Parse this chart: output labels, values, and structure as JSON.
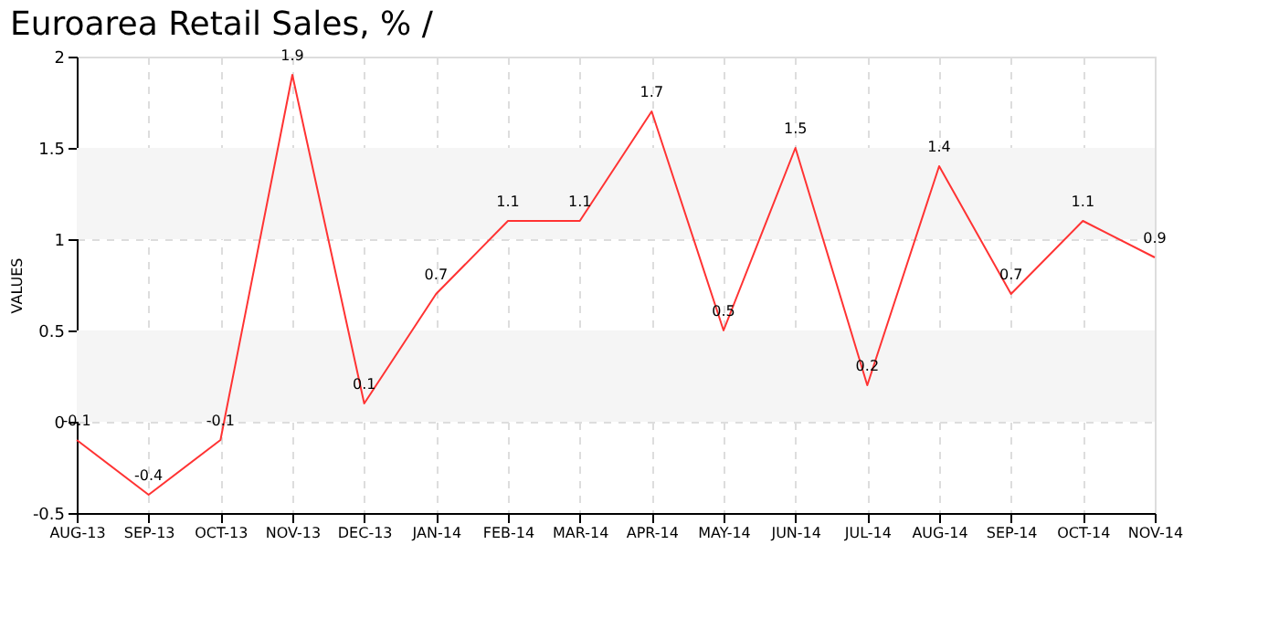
{
  "chart_data": {
    "type": "line",
    "title": "Euroarea Retail Sales, %  /",
    "ylabel": "VALUES",
    "categories": [
      "AUG-13",
      "SEP-13",
      "OCT-13",
      "NOV-13",
      "DEC-13",
      "JAN-14",
      "FEB-14",
      "MAR-14",
      "APR-14",
      "MAY-14",
      "JUN-14",
      "JUL-14",
      "AUG-14",
      "SEP-14",
      "OCT-14",
      "NOV-14"
    ],
    "series": [
      {
        "color": "#ff3333",
        "values": [
          -0.1,
          -0.4,
          -0.1,
          1.9,
          0.1,
          0.7,
          1.1,
          1.1,
          1.7,
          0.5,
          1.5,
          0.2,
          1.4,
          0.7,
          1.1,
          0.9
        ]
      }
    ],
    "ylim": [
      -0.5,
      2
    ],
    "yticks": [
      -0.5,
      0,
      0.5,
      1,
      1.5,
      2
    ],
    "bands": [
      {
        "axis": "y",
        "from": 0,
        "to": 0.5,
        "color": "#f5f5f5"
      },
      {
        "axis": "y",
        "from": 1,
        "to": 1.5,
        "color": "#f5f5f5"
      }
    ],
    "grid": true,
    "data_labels": true,
    "marker": "none",
    "line_style": "solid"
  }
}
